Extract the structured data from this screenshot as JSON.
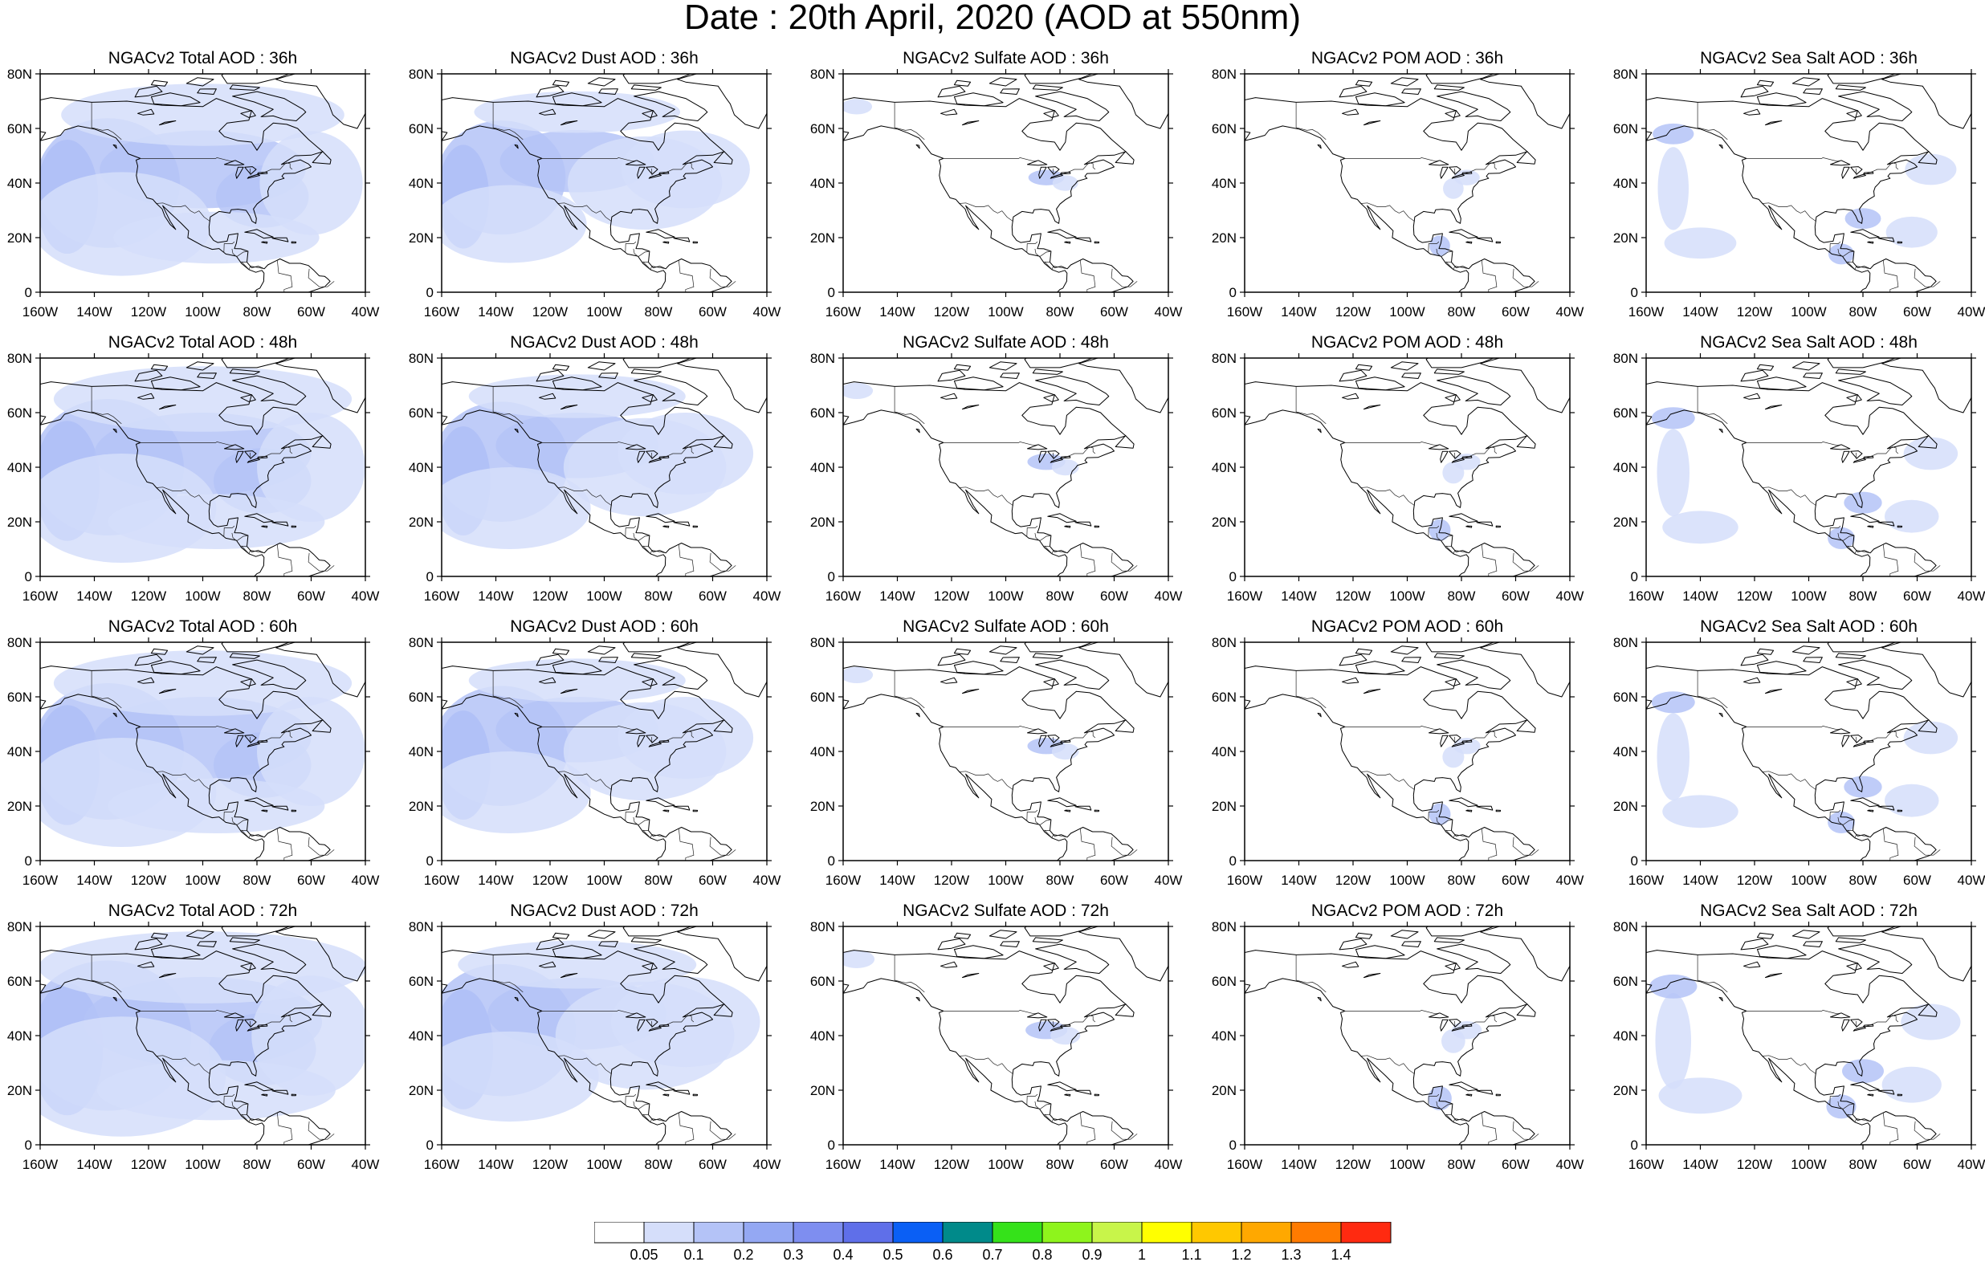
{
  "title": "Date : 20th April, 2020 (AOD at 550nm)",
  "columns": [
    {
      "key": "total",
      "titles": [
        "NGACv2 Total AOD : 36h",
        "NGACv2 Total AOD : 48h",
        "NGACv2 Total AOD : 60h",
        "NGACv2 Total AOD : 72h"
      ]
    },
    {
      "key": "dust",
      "titles": [
        "NGACv2 Dust AOD : 36h",
        "NGACv2 Dust AOD : 48h",
        "NGACv2 Dust AOD : 60h",
        "NGACv2 Dust AOD : 72h"
      ]
    },
    {
      "key": "sulfate",
      "titles": [
        "NGACv2 Sulfate AOD : 36h",
        "NGACv2 Sulfate AOD : 48h",
        "NGACv2 Sulfate AOD : 60h",
        "NGACv2 Sulfate AOD : 72h"
      ]
    },
    {
      "key": "pom",
      "titles": [
        "NGACv2 POM AOD : 36h",
        "NGACv2 POM AOD : 48h",
        "NGACv2 POM AOD : 60h",
        "NGACv2 POM AOD : 72h"
      ]
    },
    {
      "key": "seasalt",
      "titles": [
        "NGACv2 Sea Salt AOD : 36h",
        "NGACv2 Sea Salt AOD : 48h",
        "NGACv2 Sea Salt AOD : 60h",
        "NGACv2 Sea Salt  AOD : 72h"
      ]
    }
  ],
  "axes": {
    "lat_labels": [
      "80N",
      "60N",
      "40N",
      "20N",
      "0"
    ],
    "lat_values": [
      80,
      60,
      40,
      20,
      0
    ],
    "lon_labels": [
      "160W",
      "140W",
      "120W",
      "100W",
      "80W",
      "60W",
      "40W"
    ],
    "lon_values": [
      -160,
      -140,
      -120,
      -100,
      -80,
      -60,
      -40
    ]
  },
  "colorbar": {
    "levels": [
      "0.05",
      "0.1",
      "0.2",
      "0.3",
      "0.4",
      "0.5",
      "0.6",
      "0.7",
      "0.8",
      "0.9",
      "1",
      "1.1",
      "1.2",
      "1.3",
      "1.4"
    ],
    "colors": [
      "#ffffff",
      "#d5defa",
      "#b4c3f7",
      "#94a8f3",
      "#7e8ef0",
      "#5f6fe9",
      "#0a5ff5",
      "#008a8a",
      "#35e21a",
      "#8ef41c",
      "#c8f54a",
      "#ffff00",
      "#ffc800",
      "#ffa800",
      "#ff7b00",
      "#ff2a10"
    ]
  }
}
